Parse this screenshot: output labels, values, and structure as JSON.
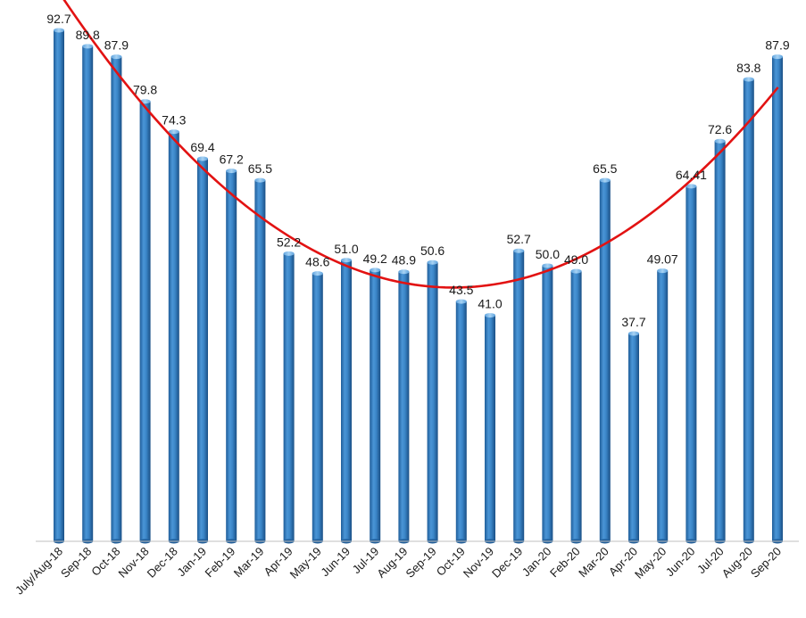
{
  "chart_data": {
    "type": "bar",
    "categories": [
      "July/Aug-18",
      "Sep-18",
      "Oct-18",
      "Nov-18",
      "Dec-18",
      "Jan-19",
      "Feb-19",
      "Mar-19",
      "Apr-19",
      "May-19",
      "Jun-19",
      "Jul-19",
      "Aug-19",
      "Sep-19",
      "Oct-19",
      "Nov-19",
      "Dec-19",
      "Jan-20",
      "Feb-20",
      "Mar-20",
      "Apr-20",
      "May-20",
      "Jun-20",
      "Jul-20",
      "Aug-20",
      "Sep-20"
    ],
    "values": [
      92.7,
      89.8,
      87.9,
      79.8,
      74.3,
      69.4,
      67.2,
      65.5,
      52.2,
      48.6,
      51.0,
      49.2,
      48.9,
      50.6,
      43.5,
      41.0,
      52.7,
      50.0,
      49.0,
      65.5,
      37.7,
      49.07,
      64.41,
      72.6,
      83.8,
      87.9
    ],
    "value_labels": [
      "92.7",
      "89.8",
      "87.9",
      "79.8",
      "74.3",
      "69.4",
      "67.2",
      "65.5",
      "52.2",
      "48.6",
      "51.0",
      "49.2",
      "48.9",
      "50.6",
      "43.5",
      "41.0",
      "52.7",
      "50.0",
      "49.0",
      "65.5",
      "37.7",
      "49.07",
      "64.41",
      "72.6",
      "83.8",
      "87.9"
    ],
    "title": "",
    "xlabel": "",
    "ylabel": "",
    "ylim": [
      0,
      95
    ],
    "grid": false,
    "legend": "none",
    "trendline": {
      "type": "polynomial",
      "order": 2,
      "color": "#e21212"
    },
    "colors": {
      "bar": "#3b86c8",
      "bar_dark": "#1f5d99",
      "bar_light": "#7db6e6",
      "axis": "#bfbfbf"
    }
  }
}
